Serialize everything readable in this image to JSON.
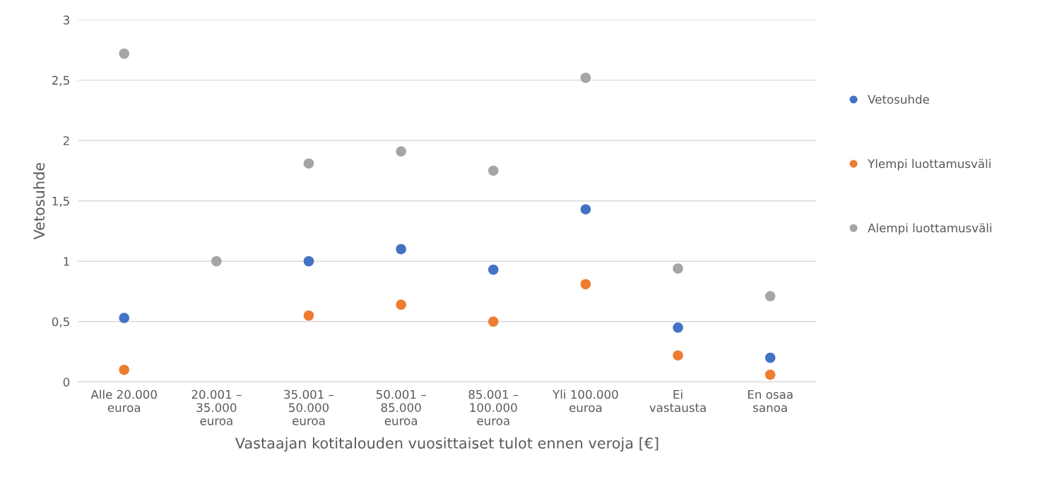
{
  "chart_data": {
    "type": "scatter",
    "xlabel": "Vastaajan kotitalouden vuosittaiset tulot ennen veroja [€]",
    "ylabel": "Vetosuhde",
    "categories": [
      "Alle 20.000\neuroa",
      "20.001 –\n35.000\neuroa",
      "35.001 –\n50.000\neuroa",
      "50.001 –\n85.000\neuroa",
      "85.001 –\n100.000\neuroa",
      "Yli 100.000\neuroa",
      "Ei\nvastausta",
      "En osaa\nsanoa"
    ],
    "series": [
      {
        "name": "Vetosuhde",
        "color": "#4472c4",
        "values": [
          0.53,
          null,
          1.0,
          1.1,
          0.93,
          1.43,
          0.45,
          0.2
        ]
      },
      {
        "name": "Ylempi luottamusväli",
        "color": "#ed7d31",
        "values": [
          0.1,
          null,
          0.55,
          0.64,
          0.5,
          0.81,
          0.22,
          0.06
        ]
      },
      {
        "name": "Alempi luottamusväli",
        "color": "#a5a5a5",
        "values": [
          2.72,
          1.0,
          1.81,
          1.91,
          1.75,
          2.52,
          0.94,
          0.71
        ]
      }
    ],
    "ylim": [
      0,
      3
    ],
    "yticks": [
      0,
      {
        "value": 0.5,
        "label": "0,5"
      },
      1,
      {
        "value": 1.5,
        "label": "1,5"
      },
      2,
      {
        "value": 2.5,
        "label": "2,5"
      },
      3
    ],
    "grid": "y",
    "legend": "right",
    "marker": "circle"
  }
}
